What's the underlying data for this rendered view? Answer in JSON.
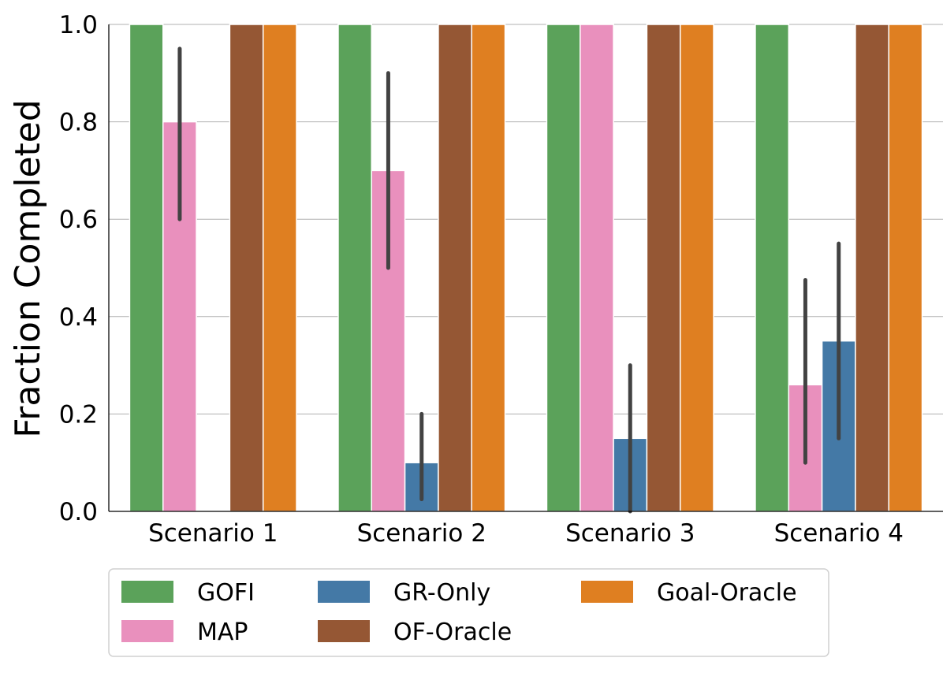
{
  "chart_data": {
    "type": "bar",
    "title": "",
    "xlabel": "",
    "ylabel": "Fraction Completed",
    "ylim": [
      0,
      1
    ],
    "yticks": [
      "0.0",
      "0.2",
      "0.4",
      "0.6",
      "0.8",
      "1.0"
    ],
    "grid": "horizontal",
    "categories": [
      "Scenario 1",
      "Scenario 2",
      "Scenario 3",
      "Scenario 4"
    ],
    "legend_position": "below",
    "series": [
      {
        "name": "GOFI",
        "color": "#5ba25a",
        "values": [
          1.0,
          1.0,
          1.0,
          1.0
        ],
        "error_low": [
          null,
          null,
          null,
          null
        ],
        "error_high": [
          null,
          null,
          null,
          null
        ]
      },
      {
        "name": "MAP",
        "color": "#e990bd",
        "values": [
          0.8,
          0.7,
          1.0,
          0.26
        ],
        "error_low": [
          0.6,
          0.5,
          null,
          0.1
        ],
        "error_high": [
          0.95,
          0.9,
          null,
          0.475
        ]
      },
      {
        "name": "GR-Only",
        "color": "#4479a6",
        "values": [
          0.0,
          0.1,
          0.15,
          0.35
        ],
        "error_low": [
          null,
          0.025,
          0.0,
          0.15
        ],
        "error_high": [
          null,
          0.2,
          0.3,
          0.55
        ]
      },
      {
        "name": "OF-Oracle",
        "color": "#955734",
        "values": [
          1.0,
          1.0,
          1.0,
          1.0
        ],
        "error_low": [
          null,
          null,
          null,
          null
        ],
        "error_high": [
          null,
          null,
          null,
          null
        ]
      },
      {
        "name": "Goal-Oracle",
        "color": "#df7f21",
        "values": [
          1.0,
          1.0,
          1.0,
          1.0
        ],
        "error_low": [
          null,
          null,
          null,
          null
        ],
        "error_high": [
          null,
          null,
          null,
          null
        ]
      }
    ],
    "legend_order": [
      "GOFI",
      "MAP",
      "GR-Only",
      "OF-Oracle",
      "Goal-Oracle"
    ]
  }
}
